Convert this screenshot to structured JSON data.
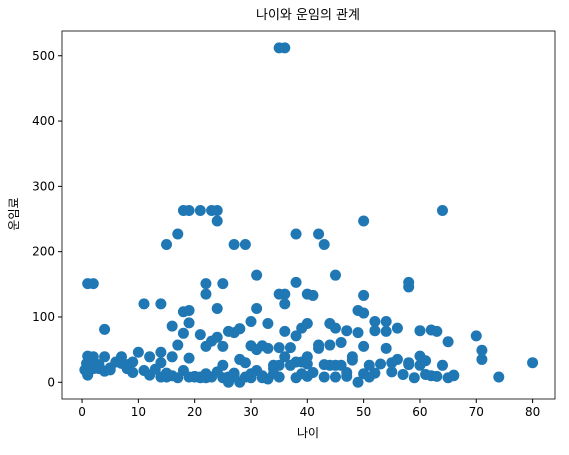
{
  "chart_data": {
    "type": "scatter",
    "title": "나이와 운임의 관계",
    "x_label": "나이",
    "y_label": "운임료",
    "color": "#1f77b4",
    "x": [
      35,
      36,
      18,
      19,
      21,
      23,
      24,
      64,
      50,
      24,
      17,
      38,
      42,
      43,
      15,
      27,
      29,
      31,
      45,
      1,
      2,
      22,
      25,
      38,
      58,
      58,
      22,
      35,
      36,
      40,
      41,
      50,
      11,
      14,
      36,
      18,
      19,
      49,
      50,
      24,
      31,
      54,
      52,
      4,
      19,
      33,
      27,
      60,
      62,
      63,
      70,
      71,
      71,
      80,
      74,
      65,
      16,
      17,
      28,
      30,
      39,
      40,
      44,
      47,
      56,
      61,
      22,
      38,
      26,
      35,
      35,
      54,
      2,
      27,
      14,
      4,
      58,
      20,
      39,
      14,
      55,
      2,
      31,
      34,
      15,
      28,
      8,
      38,
      40,
      66,
      28,
      42,
      21,
      18,
      3,
      40,
      27,
      29,
      19,
      21,
      5,
      9,
      45,
      32,
      25,
      30,
      23,
      37,
      16,
      44,
      46,
      47,
      48,
      49,
      51,
      52,
      53,
      57,
      59,
      60,
      61,
      62,
      65,
      66,
      0.8,
      1,
      1,
      2,
      3,
      4,
      6,
      7,
      8,
      10,
      11,
      12,
      13,
      17,
      20,
      22,
      24,
      26,
      28,
      30,
      32,
      33,
      34,
      36,
      37,
      39,
      41,
      43,
      45,
      46,
      50,
      18,
      24,
      25,
      30,
      36,
      40,
      42,
      48,
      49,
      23,
      26,
      33,
      19,
      29,
      31,
      35,
      44,
      27,
      54,
      56,
      58,
      21,
      25,
      22,
      16,
      32,
      34,
      38,
      43,
      47,
      51,
      55,
      64,
      45,
      50,
      52,
      60,
      63,
      0.5,
      0.9,
      5,
      7,
      9,
      12,
      14,
      15
    ],
    "values": [
      512,
      512,
      263,
      263,
      263,
      263,
      263,
      263,
      247,
      247,
      227,
      227,
      227,
      211,
      211,
      211,
      211,
      164,
      164,
      151,
      151,
      151,
      151,
      153,
      153,
      146,
      135,
      135,
      135,
      135,
      133,
      133,
      120,
      120,
      120,
      108,
      110,
      110,
      106,
      113,
      113,
      93,
      93,
      81,
      91,
      90,
      76,
      79,
      80,
      78,
      71,
      49,
      35,
      30,
      8,
      62,
      86,
      57,
      82,
      93,
      83,
      90,
      90,
      79,
      83,
      33,
      7,
      71,
      8,
      53,
      8,
      52,
      21,
      11,
      30,
      17,
      27,
      8,
      31,
      8,
      16,
      29,
      18,
      13,
      8,
      35,
      21,
      31,
      28,
      11,
      82,
      52,
      8,
      18,
      21,
      9,
      14,
      8,
      8,
      7,
      22,
      31,
      26,
      10,
      7,
      13,
      8,
      26,
      10,
      26,
      61,
      9,
      34,
      0,
      26,
      14,
      28,
      12,
      7,
      26,
      12,
      10,
      7,
      10,
      29,
      40,
      11,
      39,
      27,
      39,
      31,
      39,
      27,
      46,
      18,
      11,
      20,
      7,
      9,
      13,
      16,
      0,
      0,
      7,
      56,
      5,
      26,
      39,
      53,
      13,
      15,
      27,
      8,
      26,
      13,
      75,
      69,
      55,
      56,
      78,
      39,
      57,
      39,
      76,
      63,
      78,
      52,
      37,
      30,
      50,
      26,
      57,
      9,
      78,
      35,
      30,
      73,
      26,
      55,
      39,
      7,
      21,
      7,
      8,
      15,
      8,
      30,
      26,
      83,
      55,
      79,
      40,
      9,
      19,
      15,
      19,
      29,
      15,
      39,
      46,
      14
    ],
    "xlim": [
      -3.56,
      83.98
    ],
    "ylim": [
      -25.6,
      537.9
    ],
    "xticks": [
      0,
      10,
      20,
      30,
      40,
      50,
      60,
      70,
      80
    ],
    "yticks": [
      0,
      100,
      200,
      300,
      400,
      500
    ]
  }
}
